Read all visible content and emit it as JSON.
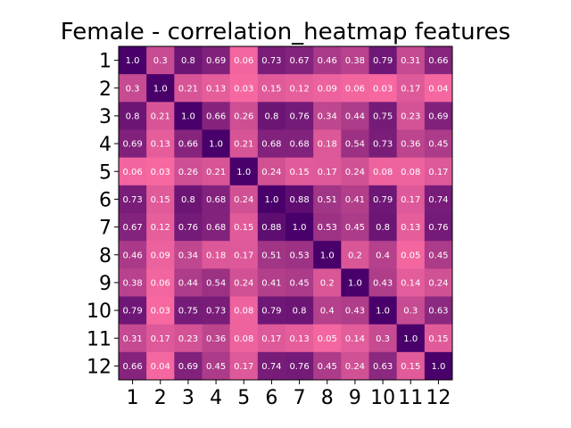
{
  "chart_data": {
    "type": "heatmap",
    "title": "Female - correlation_heatmap features",
    "xlabel": "",
    "ylabel": "",
    "x_categories": [
      "1",
      "2",
      "3",
      "4",
      "5",
      "6",
      "7",
      "8",
      "9",
      "10",
      "11",
      "12"
    ],
    "y_categories": [
      "1",
      "2",
      "3",
      "4",
      "5",
      "6",
      "7",
      "8",
      "9",
      "10",
      "11",
      "12"
    ],
    "values": [
      [
        1.0,
        0.3,
        0.8,
        0.69,
        0.06,
        0.73,
        0.67,
        0.46,
        0.38,
        0.79,
        0.31,
        0.66
      ],
      [
        0.3,
        1.0,
        0.21,
        0.13,
        0.03,
        0.15,
        0.12,
        0.09,
        0.06,
        0.03,
        0.17,
        0.04
      ],
      [
        0.8,
        0.21,
        1.0,
        0.66,
        0.26,
        0.8,
        0.76,
        0.34,
        0.44,
        0.75,
        0.23,
        0.69
      ],
      [
        0.69,
        0.13,
        0.66,
        1.0,
        0.21,
        0.68,
        0.68,
        0.18,
        0.54,
        0.73,
        0.36,
        0.45
      ],
      [
        0.06,
        0.03,
        0.26,
        0.21,
        1.0,
        0.24,
        0.15,
        0.17,
        0.24,
        0.08,
        0.08,
        0.17
      ],
      [
        0.73,
        0.15,
        0.8,
        0.68,
        0.24,
        1.0,
        0.88,
        0.51,
        0.41,
        0.79,
        0.17,
        0.74
      ],
      [
        0.67,
        0.12,
        0.76,
        0.68,
        0.15,
        0.88,
        1.0,
        0.53,
        0.45,
        0.8,
        0.13,
        0.76
      ],
      [
        0.46,
        0.09,
        0.34,
        0.18,
        0.17,
        0.51,
        0.53,
        1.0,
        0.2,
        0.4,
        0.05,
        0.45
      ],
      [
        0.38,
        0.06,
        0.44,
        0.54,
        0.24,
        0.41,
        0.45,
        0.2,
        1.0,
        0.43,
        0.14,
        0.24
      ],
      [
        0.79,
        0.03,
        0.75,
        0.73,
        0.08,
        0.79,
        0.8,
        0.4,
        0.43,
        1.0,
        0.3,
        0.63
      ],
      [
        0.31,
        0.17,
        0.23,
        0.36,
        0.08,
        0.17,
        0.13,
        0.05,
        0.14,
        0.3,
        1.0,
        0.15
      ],
      [
        0.66,
        0.04,
        0.69,
        0.45,
        0.17,
        0.74,
        0.76,
        0.45,
        0.24,
        0.63,
        0.15,
        1.0
      ]
    ],
    "color_scale": {
      "low": "#f768a1",
      "high": "#49006a"
    },
    "cell_label_color": "#ffffff",
    "grid": false,
    "legend": "none"
  }
}
